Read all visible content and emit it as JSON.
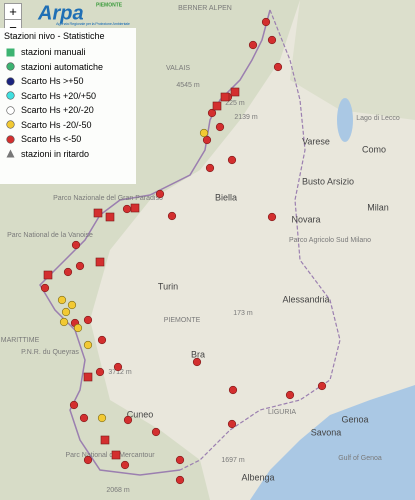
{
  "header": {
    "logo": "Arpa",
    "logo_region": "PIEMONTE",
    "logo_subtitle": "Agenzia Regionale per la Protezione Ambientale"
  },
  "zoom": {
    "in": "+",
    "out": "−"
  },
  "legend": {
    "title": "Stazioni nivo - Statistiche",
    "items": [
      "stazioni manuali",
      "stazioni automatiche",
      "Scarto Hs >+50",
      "Scarto Hs +20/+50",
      "Scarto Hs +20/-20",
      "Scarto Hs -20/-50",
      "Scarto Hs <-50",
      "stazioni in ritardo"
    ]
  },
  "map_labels": [
    "BERNER ALPEN",
    "VALAIS",
    "4545 m",
    "2139 m",
    "225 m",
    "Lago di Lecco",
    "Varese",
    "Como",
    "Busto Arsizio",
    "Biella",
    "Novara",
    "Milan",
    "Parco Agricolo Sud Milano",
    "Parco Nazionale del Gran Paradiso",
    "Parc National de la Vanoise",
    "Turin",
    "PIEMONTE",
    "173 m",
    "Alessandria",
    "P.N.R. du Queyras",
    "3712 m",
    "Bra",
    "Cuneo",
    "LIGURIA",
    "Savona",
    "Genoa",
    "Gulf of Genoa",
    "Parc National du Mercantour",
    "1697 m",
    "Albenga",
    "2068 m",
    "MARITTIME"
  ]
}
